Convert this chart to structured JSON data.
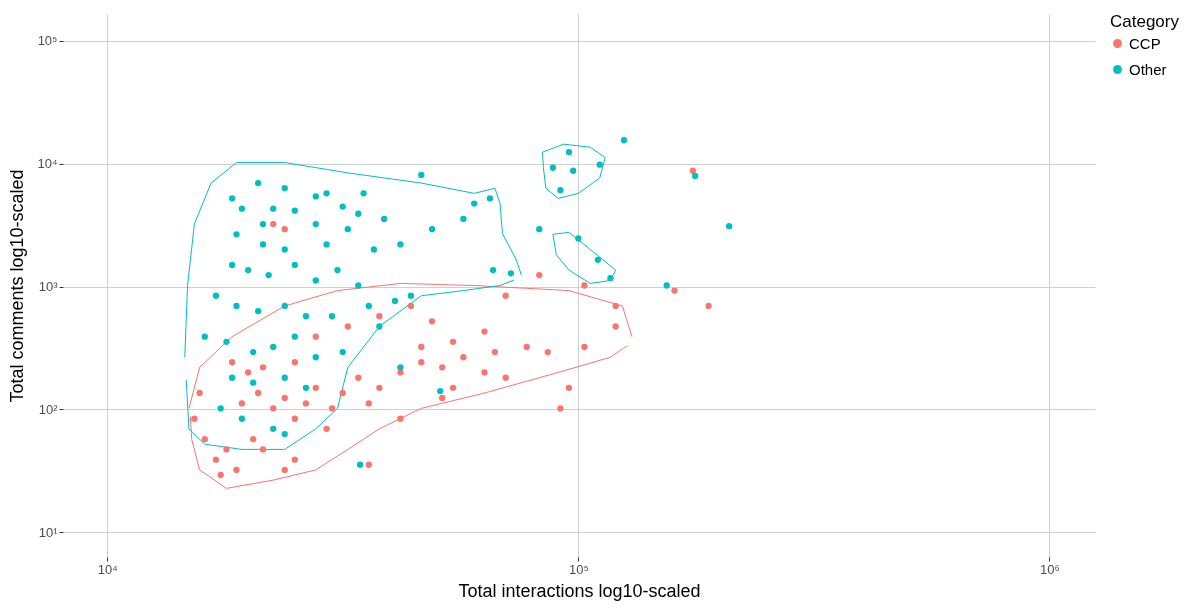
{
  "chart_data": {
    "type": "scatter",
    "xlabel": "Total interactions log10-scaled",
    "ylabel": "Total comments log10-scaled",
    "legend_title": "Category",
    "legend": "right",
    "grid": true,
    "log": "xy",
    "marker": "circle",
    "xlim": [
      8050,
      1250000
    ],
    "xticks": [
      {
        "value": 10000,
        "label": "10⁴"
      },
      {
        "value": 100000,
        "label": "10⁵"
      },
      {
        "value": 1000000,
        "label": "10⁶"
      }
    ],
    "ylim": [
      6.3,
      165000
    ],
    "yticks": [
      {
        "value": 10,
        "label": "10¹"
      },
      {
        "value": 100,
        "label": "10²"
      },
      {
        "value": 1000,
        "label": "10³"
      },
      {
        "value": 10000,
        "label": "10⁴"
      },
      {
        "value": 100000,
        "label": "10⁵"
      }
    ],
    "series": [
      {
        "type": "line",
        "marker": "none",
        "color": "#f8766d",
        "x": [
          14900,
          15700,
          18400,
          23800,
          30800,
          41900,
          60100,
          95500,
          124000,
          130000
        ],
        "values": [
          102,
          220,
          391,
          695,
          927,
          1060,
          1020,
          927,
          695,
          391
        ]
      },
      {
        "type": "line",
        "marker": "none",
        "color": "#f8766d",
        "x": [
          15000,
          15100,
          15700,
          17900,
          22500,
          27700,
          32400,
          37800,
          46400,
          63200,
          90600,
          117000,
          127000
        ],
        "values": [
          88,
          57.3,
          32.2,
          22.8,
          26.6,
          32.2,
          47.3,
          69.5,
          102,
          136,
          200,
          266,
          330
        ]
      },
      {
        "type": "line",
        "marker": "none",
        "color": "#00bfc4",
        "x": [
          14600,
          14800,
          15300,
          16600,
          18800,
          23800,
          32400,
          46400,
          60100,
          66500,
          68200,
          69000,
          73800,
          75700
        ],
        "values": [
          266,
          1020,
          3220,
          6950,
          10200,
          10200,
          8410,
          6950,
          5730,
          6310,
          4730,
          2700,
          1650,
          1240
        ]
      },
      {
        "type": "line",
        "marker": "none",
        "color": "#00bfc4",
        "x": [
          14700,
          14900,
          16100,
          19300,
          23800,
          27700,
          30800,
          32400,
          37800,
          46400,
          57000,
          68200,
          73000
        ],
        "values": [
          175,
          69.5,
          52.1,
          47.3,
          47.3,
          69.5,
          102,
          220,
          473,
          841,
          927,
          1020,
          1130
        ]
      },
      {
        "type": "line",
        "marker": "none",
        "color": "#00bfc4",
        "x": [
          83900,
          93100,
          106000,
          114000
        ],
        "values": [
          12400,
          14400,
          13600,
          11200
        ]
      },
      {
        "type": "line",
        "marker": "none",
        "color": "#00bfc4",
        "x": [
          83900,
          84300,
          85300,
          90600,
          100000,
          111000,
          114000
        ],
        "values": [
          12400,
          9260,
          6310,
          5210,
          5730,
          7640,
          11200
        ]
      },
      {
        "type": "line",
        "marker": "none",
        "color": "#00bfc4",
        "x": [
          88300,
          95500,
          106000,
          120000
        ],
        "values": [
          2660,
          2760,
          2000,
          1360
        ]
      },
      {
        "type": "line",
        "marker": "none",
        "color": "#00bfc4",
        "x": [
          88300,
          89800,
          95500,
          106000,
          117000,
          120000
        ],
        "values": [
          2660,
          1810,
          1360,
          1060,
          1120,
          1360
        ]
      },
      {
        "name": "CCP",
        "color": "#f8766d",
        "x": [
          16100,
          17000,
          17900,
          18800,
          17400,
          20400,
          21400,
          23800,
          25000,
          19300,
          20900,
          22500,
          23800,
          25000,
          26400,
          27700,
          30000,
          31600,
          34100,
          35900,
          37800,
          41900,
          46400,
          51400,
          54200,
          57000,
          63200,
          66500,
          70100,
          77700,
          86100,
          103000,
          120000,
          95500,
          91600,
          70100,
          82600,
          103000,
          120000,
          160000,
          189000,
          175000,
          35900,
          29200,
          41900,
          51400,
          27700,
          32400,
          37800,
          44100,
          48900,
          25000,
          21400,
          18400,
          15700,
          15300,
          19900,
          63200,
          54200,
          46400,
          23800,
          22500
        ],
        "values": [
          57.3,
          39,
          47.3,
          32.2,
          29.3,
          57.3,
          47.3,
          32.2,
          39,
          112,
          136,
          102,
          124,
          84,
          112,
          150,
          102,
          136,
          181,
          112,
          150,
          200,
          242,
          220,
          150,
          266,
          200,
          293,
          181,
          322,
          293,
          322,
          473,
          150,
          102,
          841,
          1240,
          1020,
          695,
          927,
          695,
          8750,
          35.5,
          69.5,
          84,
          124,
          391,
          473,
          573,
          695,
          521,
          242,
          220,
          242,
          136,
          84,
          200,
          430,
          355,
          322,
          2930,
          3220
        ]
      },
      {
        "name": "Other",
        "color": "#00bfc4",
        "x": [
          20900,
          18400,
          19300,
          22500,
          25000,
          27700,
          31600,
          34100,
          38700,
          46400,
          18800,
          21400,
          23800,
          29200,
          32400,
          36800,
          41900,
          48900,
          18400,
          19900,
          22000,
          25000,
          27700,
          30800,
          34100,
          44100,
          17000,
          18800,
          20900,
          23800,
          26400,
          30000,
          35900,
          40800,
          16100,
          17900,
          20400,
          22500,
          25000,
          27700,
          31600,
          18400,
          20400,
          23800,
          26400,
          17400,
          19300,
          22500,
          23800,
          34400,
          50900,
          41900,
          37800,
          60100,
          64900,
          65900,
          71900,
          82600,
          88300,
          95500,
          111000,
          91600,
          97500,
          125000,
          177000,
          209000,
          100000,
          110000,
          117000,
          154000,
          57000,
          23800,
          29200,
          35000,
          27700,
          21400
        ],
        "values": [
          6950,
          5210,
          4300,
          4300,
          4140,
          5410,
          4470,
          3910,
          3550,
          8090,
          2660,
          2200,
          2000,
          2200,
          2930,
          2000,
          2200,
          2930,
          1500,
          1360,
          1240,
          1500,
          1120,
          1360,
          1020,
          841,
          841,
          695,
          631,
          695,
          573,
          573,
          695,
          764,
          391,
          355,
          293,
          322,
          391,
          266,
          293,
          181,
          165,
          181,
          150,
          102,
          84,
          69.5,
          63,
          35.5,
          141,
          220,
          473,
          4730,
          5210,
          1360,
          1280,
          2930,
          9260,
          12400,
          9800,
          6070,
          8750,
          15500,
          7940,
          3100,
          2460,
          1650,
          1170,
          1020,
          3550,
          6310,
          5730,
          5730,
          3220,
          3220
        ]
      }
    ]
  }
}
